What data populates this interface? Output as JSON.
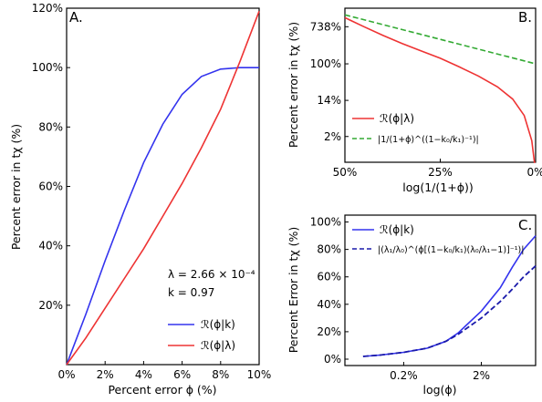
{
  "chart_data": [
    {
      "panel": "A.",
      "type": "line",
      "title": "",
      "xlabel": "Percent error ϕ (%)",
      "ylabel": "Percent error in tχ (%)",
      "xlim": [
        0,
        10
      ],
      "ylim": [
        0,
        120
      ],
      "x_ticks": [
        0,
        2,
        4,
        6,
        8,
        10
      ],
      "x_tick_labels": [
        "0%",
        "2%",
        "4%",
        "6%",
        "8%",
        "10%"
      ],
      "y_ticks": [
        20,
        40,
        60,
        80,
        100,
        120
      ],
      "y_tick_labels": [
        "20%",
        "40%",
        "60%",
        "80%",
        "100%",
        "120%"
      ],
      "grid": false,
      "legend_position": "lower-right",
      "annotations": [
        "λ = 2.66 × 10⁻⁴",
        "k = 0.97"
      ],
      "series": [
        {
          "name": "ℛ(ϕ|k)",
          "color": "#3333ee",
          "x": [
            0,
            1,
            2,
            3,
            4,
            5,
            6,
            7,
            8,
            9,
            10
          ],
          "y": [
            0,
            17,
            35,
            52,
            68,
            81,
            91,
            97,
            99.5,
            100,
            100
          ]
        },
        {
          "name": "ℛ(ϕ|λ)",
          "color": "#ee3333",
          "x": [
            0,
            1,
            2,
            3,
            4,
            5,
            6,
            7,
            8,
            9,
            10
          ],
          "y": [
            0,
            9,
            19,
            29,
            39,
            50,
            61,
            73,
            86,
            102,
            119
          ]
        }
      ]
    },
    {
      "panel": "B.",
      "type": "line",
      "title": "",
      "xlabel": "log(1/(1+ϕ))",
      "ylabel": "Percent error in tχ (%)",
      "y_scale": "log",
      "x_tick_labels": [
        "50%",
        "25%",
        "0%"
      ],
      "y_ticks": [
        2,
        14,
        100,
        738
      ],
      "y_tick_labels": [
        "2%",
        "14%",
        "100%",
        "738%"
      ],
      "grid": false,
      "legend_position": "lower-left",
      "series": [
        {
          "name": "ℛ(ϕ|λ)",
          "color": "#ee3333",
          "style": "solid",
          "x": [
            50,
            45,
            40,
            35,
            30,
            25,
            20,
            15,
            10,
            6,
            3,
            1,
            0.3,
            0.05
          ],
          "y": [
            1200,
            740,
            460,
            300,
            200,
            135,
            85,
            52,
            29,
            15,
            6.2,
            1.6,
            0.3,
            0.04
          ]
        },
        {
          "name": "|1/(1+ϕ)^((1−k₀/k₁)⁻¹)|",
          "color": "#33aa33",
          "style": "dashed",
          "x": [
            50,
            0
          ],
          "y": [
            1400,
            100
          ]
        }
      ]
    },
    {
      "panel": "C.",
      "type": "line",
      "title": "",
      "xlabel": "log(ϕ)",
      "ylabel": "Percent Error in tχ (%)",
      "x_scale": "log",
      "x_ticks": [
        0.2,
        2
      ],
      "x_tick_labels": [
        "0.2%",
        "2%"
      ],
      "ylim": [
        0,
        100
      ],
      "y_ticks": [
        0,
        20,
        40,
        60,
        80,
        100
      ],
      "y_tick_labels": [
        "0%",
        "20%",
        "40%",
        "60%",
        "80%",
        "100%"
      ],
      "grid": false,
      "legend_position": "upper-left",
      "series": [
        {
          "name": "ℛ(ϕ|k)",
          "color": "#3333ee",
          "style": "solid",
          "x": [
            0.06,
            0.1,
            0.2,
            0.4,
            0.7,
            1,
            2,
            3.5,
            5,
            7,
            10
          ],
          "y": [
            2,
            3,
            5,
            8,
            13,
            19,
            35,
            52,
            67,
            80,
            90
          ]
        },
        {
          "name": "|(λ₁/λ₀)^(ϕ[(1−k₀/k₁)(λ₀/λ₁−1)]⁻¹)|",
          "color": "#1a1aaa",
          "style": "dashed",
          "x": [
            0.06,
            0.1,
            0.2,
            0.4,
            0.7,
            1,
            2,
            3.5,
            5,
            7,
            10
          ],
          "y": [
            2,
            3,
            5,
            8,
            13,
            18,
            30,
            42,
            51,
            60,
            68
          ]
        }
      ]
    }
  ]
}
